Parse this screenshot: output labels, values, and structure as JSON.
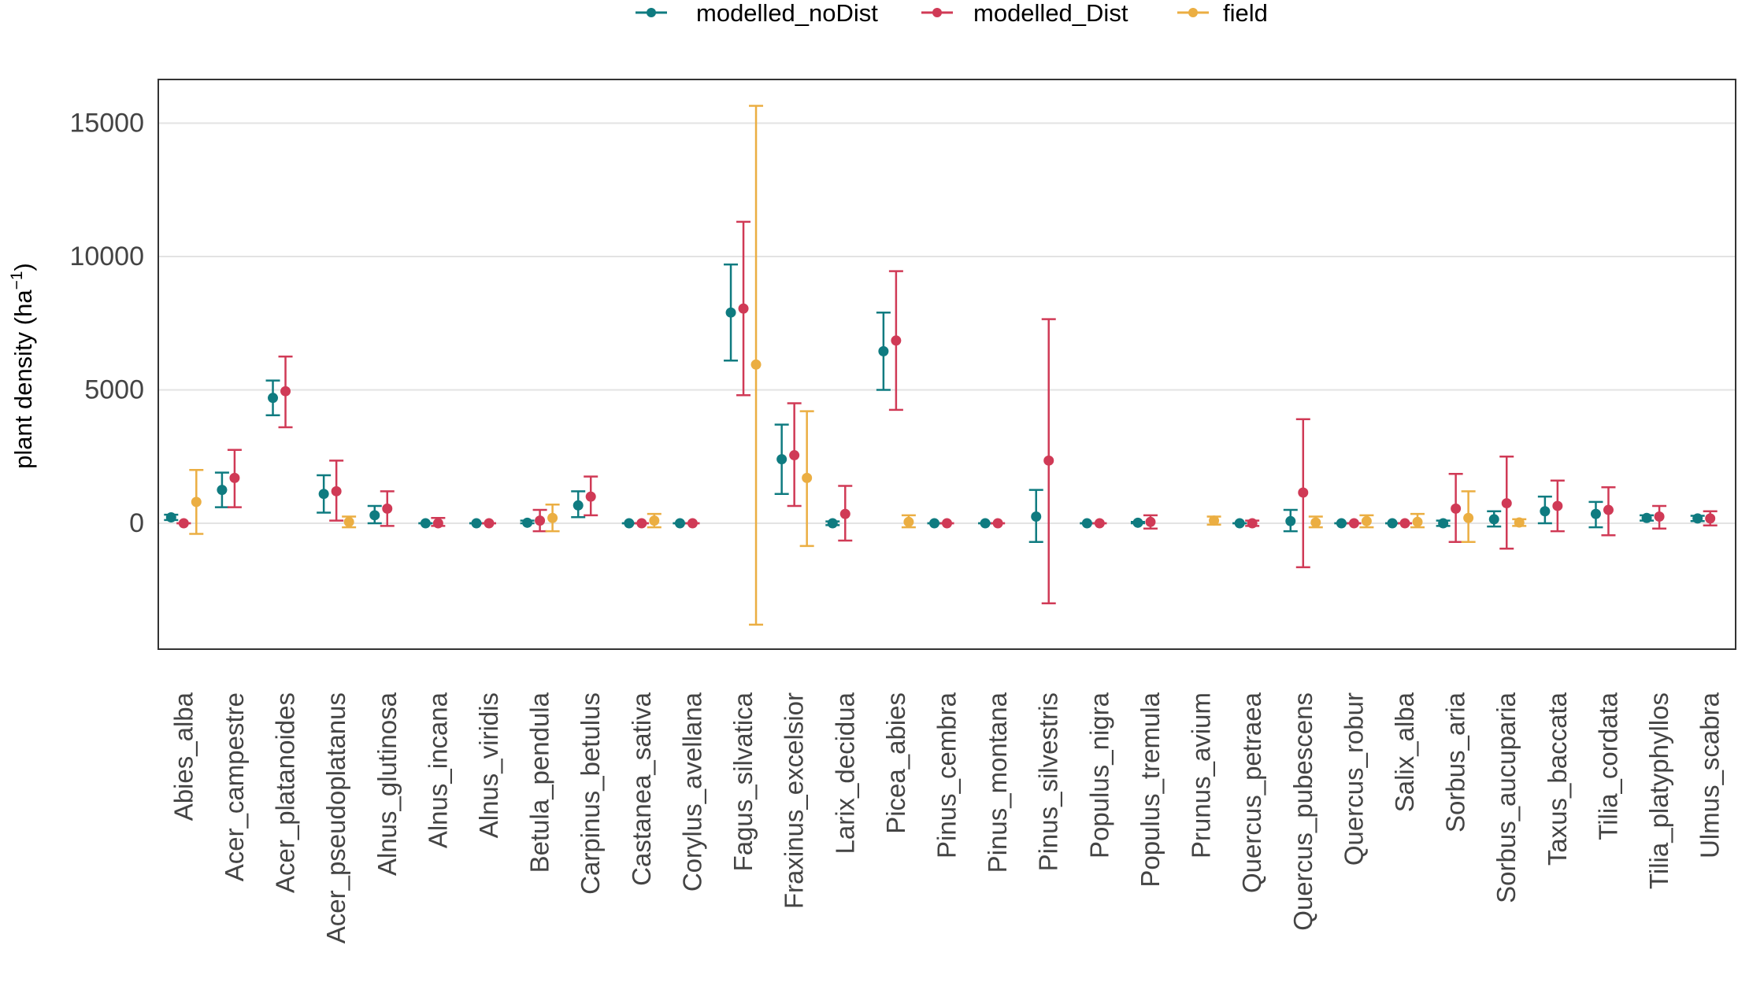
{
  "chart_data": {
    "type": "scatter",
    "title": "",
    "xlabel": "",
    "ylabel": "plant density (ha",
    "ylabel_superscript": "−1",
    "ylabel_close": ")",
    "ylim": [
      -4500,
      16600
    ],
    "yticks": [
      0,
      5000,
      10000,
      15000
    ],
    "legend_position": "top-center",
    "colors": {
      "modelled_noDist": "#0f7b80",
      "modelled_Dist": "#d03a56",
      "field": "#ebae42"
    },
    "series_names": [
      "modelled_noDist",
      "modelled_Dist",
      "field"
    ],
    "categories": [
      "Abies_alba",
      "Acer_campestre",
      "Acer_platanoides",
      "Acer_pseudoplatanus",
      "Alnus_glutinosa",
      "Alnus_incana",
      "Alnus_viridis",
      "Betula_pendula",
      "Carpinus_betulus",
      "Castanea_sativa",
      "Corylus_avellana",
      "Fagus_silvatica",
      "Fraxinus_excelsior",
      "Larix_decidua",
      "Picea_abies",
      "Pinus_cembra",
      "Pinus_montana",
      "Pinus_silvestris",
      "Populus_nigra",
      "Populus_tremula",
      "Prunus_avium",
      "Quercus_petraea",
      "Quercus_pubescens",
      "Quercus_robur",
      "Salix_alba",
      "Sorbus_aria",
      "Sorbus_aucuparia",
      "Taxus_baccata",
      "Tilia_cordata",
      "Tilia_platyphyllos",
      "Ulmus_scabra"
    ],
    "series": [
      {
        "name": "modelled_noDist",
        "values": [
          220,
          1250,
          4700,
          1100,
          300,
          0,
          0,
          20,
          670,
          0,
          0,
          7900,
          2400,
          0,
          6450,
          0,
          0,
          250,
          0,
          20,
          null,
          0,
          80,
          0,
          0,
          0,
          150,
          450,
          350,
          200,
          180
        ],
        "lower": [
          120,
          600,
          4050,
          400,
          0,
          0,
          0,
          0,
          230,
          0,
          0,
          6100,
          1100,
          -70,
          5000,
          0,
          0,
          -700,
          0,
          0,
          null,
          0,
          -300,
          0,
          0,
          -100,
          -120,
          0,
          -150,
          100,
          80
        ],
        "upper": [
          320,
          1900,
          5350,
          1800,
          650,
          0,
          0,
          100,
          1200,
          0,
          0,
          9700,
          3700,
          70,
          7900,
          0,
          0,
          1250,
          0,
          50,
          null,
          0,
          500,
          0,
          0,
          100,
          450,
          1000,
          800,
          300,
          280
        ]
      },
      {
        "name": "modelled_Dist",
        "values": [
          0,
          1700,
          4950,
          1200,
          550,
          0,
          0,
          100,
          1000,
          0,
          0,
          8050,
          2550,
          350,
          6850,
          0,
          0,
          2350,
          0,
          50,
          null,
          0,
          1150,
          0,
          0,
          550,
          750,
          650,
          500,
          250,
          180
        ],
        "lower": [
          0,
          600,
          3600,
          100,
          -100,
          -100,
          0,
          -300,
          300,
          0,
          0,
          4800,
          650,
          -650,
          4250,
          0,
          0,
          -3000,
          0,
          -200,
          null,
          -100,
          -1650,
          0,
          0,
          -700,
          -950,
          -300,
          -450,
          -200,
          -80
        ],
        "upper": [
          0,
          2750,
          6250,
          2350,
          1200,
          200,
          0,
          500,
          1750,
          0,
          0,
          11300,
          4500,
          1400,
          9450,
          0,
          0,
          7650,
          0,
          300,
          null,
          100,
          3900,
          0,
          0,
          1850,
          2500,
          1600,
          1350,
          650,
          450
        ]
      },
      {
        "name": "field",
        "values": [
          800,
          null,
          null,
          50,
          null,
          null,
          null,
          200,
          null,
          100,
          null,
          5950,
          1700,
          null,
          50,
          null,
          null,
          null,
          null,
          null,
          100,
          null,
          30,
          80,
          50,
          200,
          30,
          null,
          null,
          null,
          null
        ],
        "lower": [
          -400,
          null,
          null,
          -150,
          null,
          null,
          null,
          -300,
          null,
          -150,
          null,
          -3800,
          -850,
          null,
          -150,
          null,
          null,
          null,
          null,
          null,
          -50,
          null,
          -150,
          -150,
          -150,
          -700,
          -100,
          null,
          null,
          null,
          null
        ],
        "upper": [
          2000,
          null,
          null,
          250,
          null,
          null,
          null,
          700,
          null,
          350,
          null,
          15650,
          4200,
          null,
          300,
          null,
          null,
          null,
          null,
          null,
          250,
          null,
          250,
          300,
          350,
          1200,
          150,
          null,
          null,
          null,
          null
        ]
      }
    ]
  }
}
